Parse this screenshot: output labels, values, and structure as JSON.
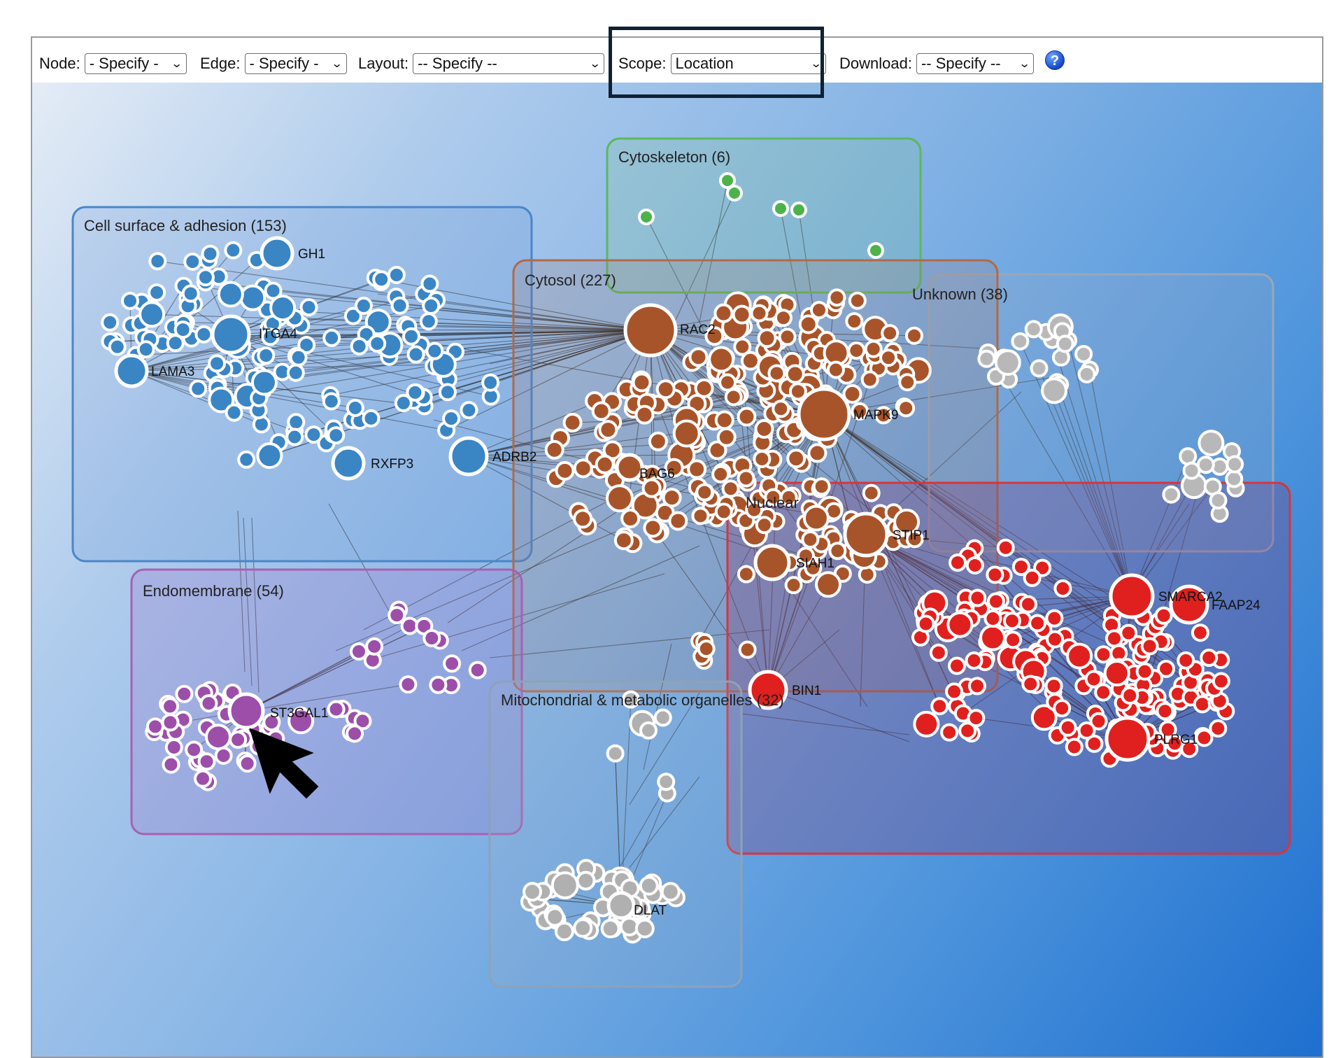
{
  "toolbar": {
    "node": {
      "label": "Node:",
      "value": "- Specify -"
    },
    "edge": {
      "label": "Edge:",
      "value": "- Specify -"
    },
    "layout": {
      "label": "Layout:",
      "value": "-- Specify --"
    },
    "scope": {
      "label": "Scope:",
      "value": "Location"
    },
    "download": {
      "label": "Download:",
      "value": "-- Specify --"
    },
    "help_icon": "question-mark-icon",
    "help_symbol": "?"
  },
  "clusters": {
    "cytoskeleton": "Cytoskeleton (6)",
    "cell_surface": "Cell surface & adhesion (153)",
    "cytosol": "Cytosol (227)",
    "unknown": "Unknown (38)",
    "endomembrane": "Endomembrane (54)",
    "mitochondrial": "Mitochondrial & metabolic organelles (32)",
    "nucleus_partial": "Nuclear"
  },
  "node_labels": {
    "gh1": "GH1",
    "itga4": "ITGA4",
    "lama3": "LAMA3",
    "rxfp3": "RXFP3",
    "adrb2": "ADRB2",
    "rac2": "RAC2",
    "mapk9": "MAPK9",
    "bag6": "BAG6",
    "stip1": "STIP1",
    "siah1": "SIAH1",
    "bin1": "BIN1",
    "smarca2": "SMARCA2",
    "faap24": "FAAP24",
    "plrg1": "PLRG1",
    "st3gal1": "ST3GAL1",
    "dlat": "DLAT"
  },
  "colors": {
    "cell_surface": "#3a85c4",
    "cytosol": "#a8542a",
    "cytoskeleton": "#4cb24a",
    "nucleus": "#e0201e",
    "endomembrane": "#9c4ea8",
    "unknown": "#b8b8b8",
    "mitochondrial": "#b0b0b0"
  }
}
